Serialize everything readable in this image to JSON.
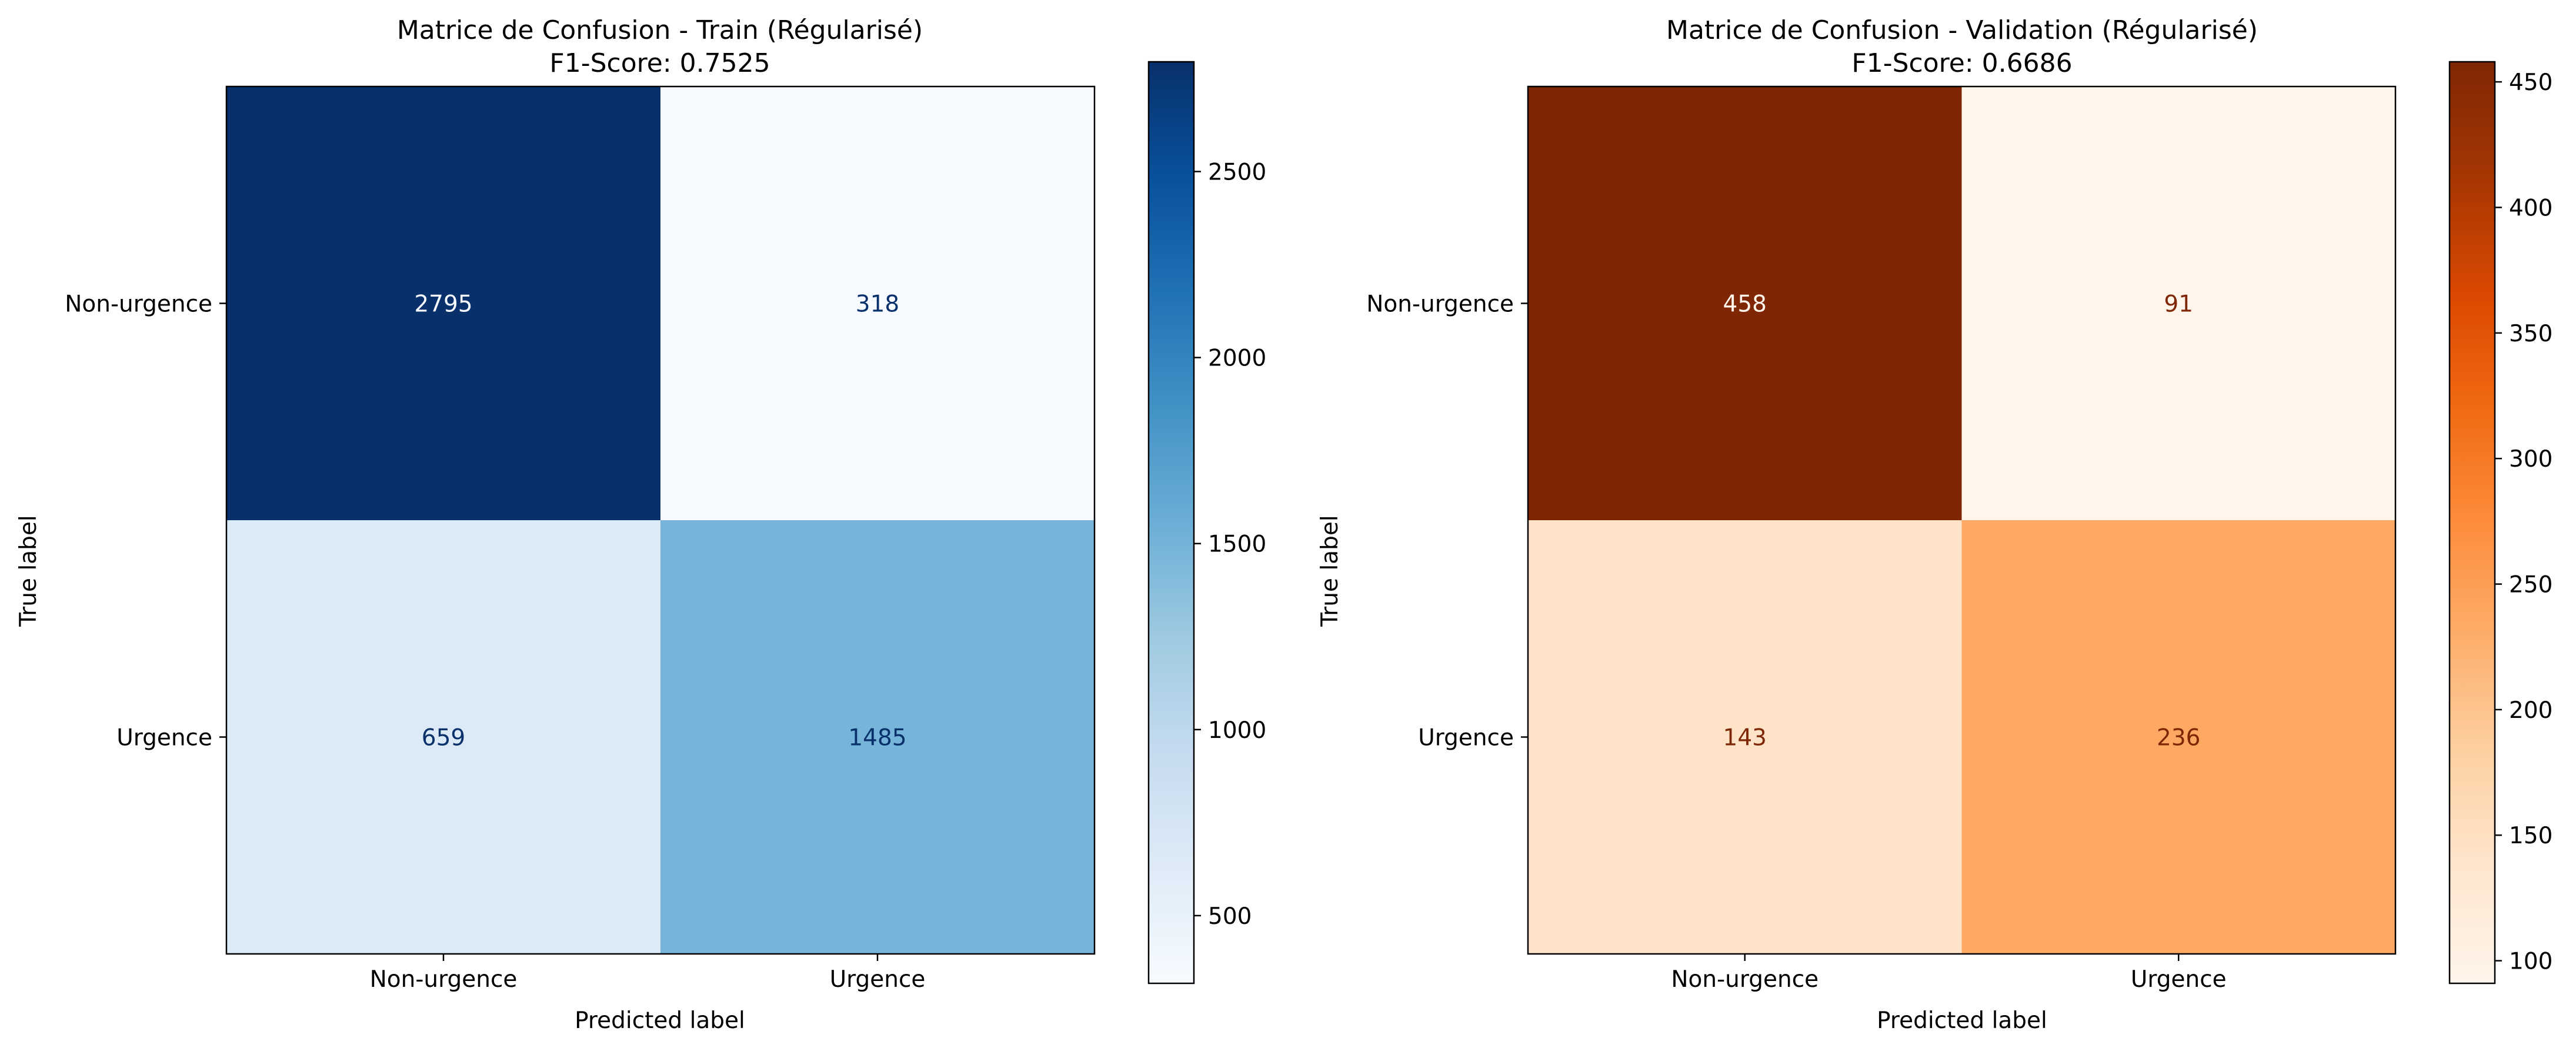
{
  "chart_data": [
    {
      "type": "heatmap",
      "title": "Matrice de Confusion - Train (Régularisé)",
      "subtitle": "F1-Score: 0.7525",
      "xlabel": "Predicted label",
      "ylabel": "True label",
      "x_categories": [
        "Non-urgence",
        "Urgence"
      ],
      "y_categories": [
        "Non-urgence",
        "Urgence"
      ],
      "values": [
        [
          2795,
          318
        ],
        [
          659,
          1485
        ]
      ],
      "colormap": "Blues",
      "colorbar": {
        "min": 318,
        "max": 2795,
        "ticks": [
          500,
          1000,
          1500,
          2000,
          2500
        ]
      }
    },
    {
      "type": "heatmap",
      "title": "Matrice de Confusion - Validation (Régularisé)",
      "subtitle": "F1-Score: 0.6686",
      "xlabel": "Predicted label",
      "ylabel": "True label",
      "x_categories": [
        "Non-urgence",
        "Urgence"
      ],
      "y_categories": [
        "Non-urgence",
        "Urgence"
      ],
      "values": [
        [
          458,
          91
        ],
        [
          143,
          236
        ]
      ],
      "colormap": "Oranges",
      "colorbar": {
        "min": 91,
        "max": 458,
        "ticks": [
          100,
          150,
          200,
          250,
          300,
          350,
          400,
          450
        ]
      }
    }
  ],
  "colormaps": {
    "Blues": [
      "#f7fbff",
      "#deebf7",
      "#c6dbef",
      "#9ecae1",
      "#6baed6",
      "#4292c6",
      "#2171b5",
      "#08519c",
      "#08306b"
    ],
    "Oranges": [
      "#fff5eb",
      "#fee6ce",
      "#fdd0a2",
      "#fdae6b",
      "#fd8d3c",
      "#f16913",
      "#d94801",
      "#a63603",
      "#7f2704"
    ]
  }
}
